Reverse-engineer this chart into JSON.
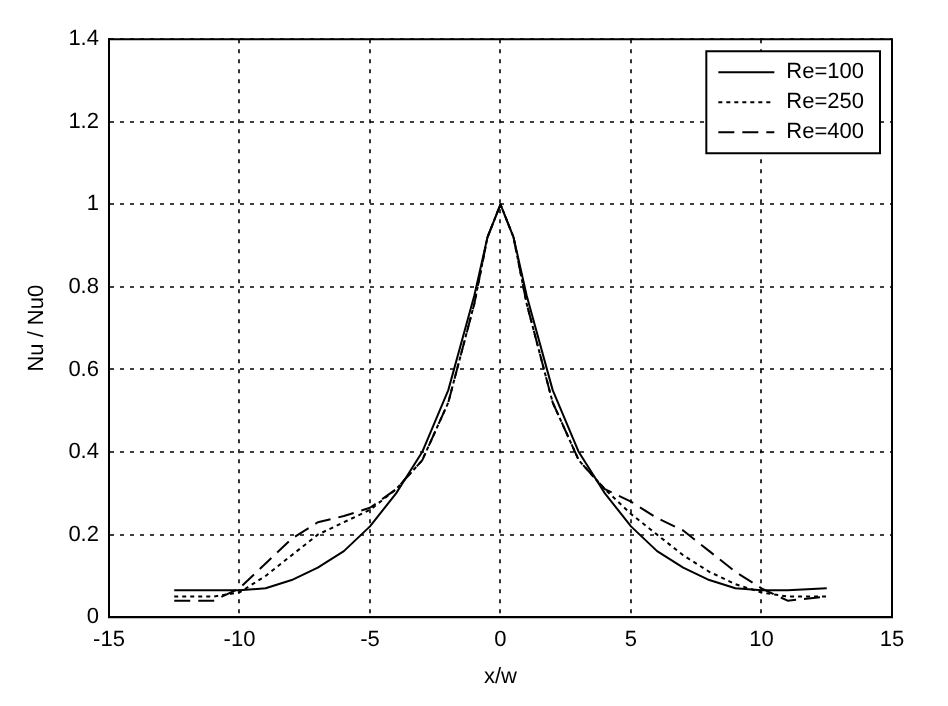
{
  "chart_data": {
    "type": "line",
    "xlabel": "x/w",
    "ylabel": "Nu / Nu0",
    "xlim": [
      -15,
      15
    ],
    "xticks": [
      -15,
      -10,
      -5,
      0,
      5,
      10,
      15
    ],
    "ylim": [
      0,
      1.4
    ],
    "yticks": [
      0,
      0.2,
      0.4,
      0.6,
      0.8,
      1,
      1.2,
      1.4
    ],
    "grid": true,
    "legend": "top right",
    "marker": "none",
    "series": [
      {
        "name": "Re=100",
        "color": "#000000",
        "line_style": "solid",
        "x": [
          -12.5,
          -11,
          -10,
          -9,
          -8,
          -7,
          -6,
          -5,
          -4,
          -3,
          -2,
          -1,
          -0.5,
          0,
          0.5,
          1,
          2,
          3,
          4,
          5,
          6,
          7,
          8,
          9,
          10,
          11,
          12.5
        ],
        "values": [
          0.065,
          0.065,
          0.065,
          0.07,
          0.09,
          0.12,
          0.16,
          0.22,
          0.3,
          0.4,
          0.55,
          0.78,
          0.92,
          1,
          0.92,
          0.78,
          0.55,
          0.4,
          0.3,
          0.22,
          0.16,
          0.12,
          0.09,
          0.07,
          0.065,
          0.065,
          0.07
        ]
      },
      {
        "name": "Re=250",
        "color": "#000000",
        "line_style": "dotted",
        "x": [
          -12.5,
          -11,
          -10,
          -9,
          -8,
          -7,
          -6,
          -5,
          -4,
          -3,
          -2,
          -1,
          -0.5,
          0,
          0.5,
          1,
          2,
          3,
          4,
          5,
          6,
          7,
          8,
          9,
          10,
          11,
          12.5
        ],
        "values": [
          0.05,
          0.05,
          0.06,
          0.1,
          0.15,
          0.2,
          0.23,
          0.26,
          0.31,
          0.38,
          0.52,
          0.76,
          0.92,
          1,
          0.92,
          0.76,
          0.52,
          0.38,
          0.31,
          0.25,
          0.2,
          0.15,
          0.11,
          0.08,
          0.06,
          0.05,
          0.05
        ]
      },
      {
        "name": "Re=400",
        "color": "#000000",
        "line_style": "dashed",
        "x": [
          -12.5,
          -11,
          -10,
          -9,
          -8,
          -7,
          -6,
          -5,
          -4,
          -3,
          -2,
          -1,
          -0.5,
          0,
          0.5,
          1,
          2,
          3,
          4,
          5,
          6,
          7,
          8,
          9,
          10,
          11,
          12.5
        ],
        "values": [
          0.04,
          0.04,
          0.07,
          0.13,
          0.19,
          0.23,
          0.245,
          0.265,
          0.31,
          0.38,
          0.52,
          0.76,
          0.92,
          1,
          0.92,
          0.76,
          0.52,
          0.38,
          0.31,
          0.28,
          0.24,
          0.21,
          0.16,
          0.11,
          0.07,
          0.04,
          0.05
        ]
      }
    ]
  }
}
